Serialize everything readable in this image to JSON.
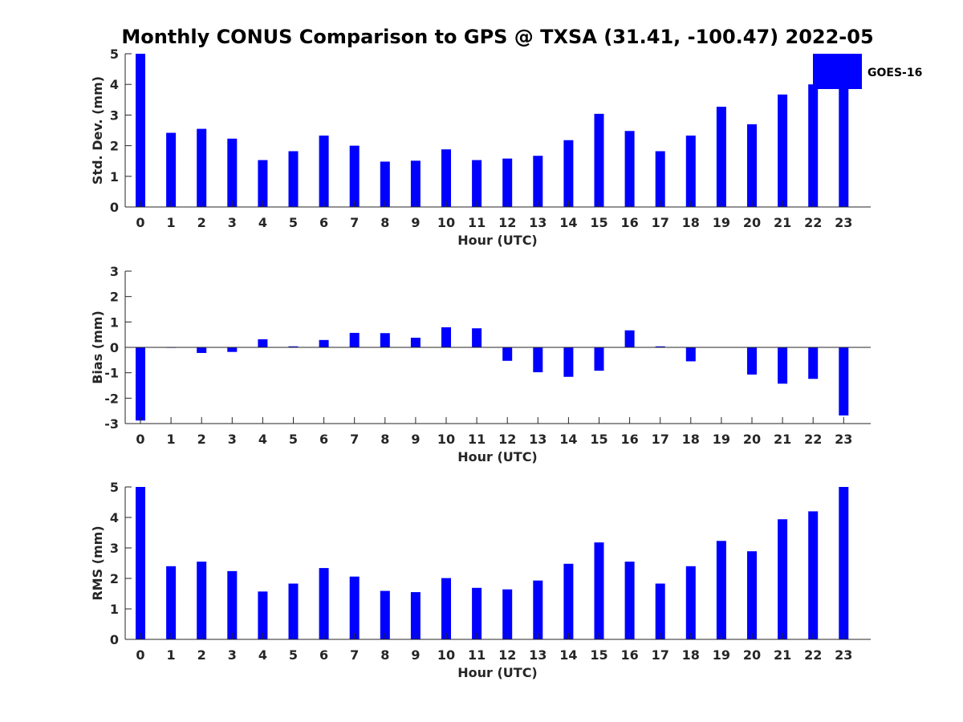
{
  "colors": {
    "bar": "#0000ff",
    "axis": "#262626",
    "background": "#ffffff"
  },
  "chart_data": {
    "title": "Monthly CONUS Comparison to GPS @ TXSA (31.41, -100.47) 2022-05",
    "legend": {
      "label": "GOES-16",
      "placement": "top-right"
    },
    "panels": [
      {
        "type": "bar",
        "ylabel": "Std. Dev. (mm)",
        "xlabel": "Hour (UTC)",
        "ylim": [
          0,
          5
        ],
        "yticks": [
          0,
          1,
          2,
          3,
          4,
          5
        ],
        "categories": [
          "0",
          "1",
          "2",
          "3",
          "4",
          "5",
          "6",
          "7",
          "8",
          "9",
          "10",
          "11",
          "12",
          "13",
          "14",
          "15",
          "16",
          "17",
          "18",
          "19",
          "20",
          "21",
          "22",
          "23"
        ],
        "series": [
          {
            "name": "GOES-16",
            "values": [
              5.0,
              2.42,
              2.55,
              2.23,
              1.53,
              1.82,
              2.33,
              2.0,
              1.48,
              1.51,
              1.88,
              1.53,
              1.58,
              1.67,
              2.18,
              3.04,
              2.48,
              1.82,
              2.33,
              3.27,
              2.7,
              3.67,
              4.0,
              4.0
            ]
          }
        ]
      },
      {
        "type": "bar",
        "ylabel": "Bias (mm)",
        "xlabel": "Hour (UTC)",
        "ylim": [
          -3,
          3
        ],
        "yticks": [
          -3,
          -2,
          -1,
          0,
          1,
          2,
          3
        ],
        "categories": [
          "0",
          "1",
          "2",
          "3",
          "4",
          "5",
          "6",
          "7",
          "8",
          "9",
          "10",
          "11",
          "12",
          "13",
          "14",
          "15",
          "16",
          "17",
          "18",
          "19",
          "20",
          "21",
          "22",
          "23"
        ],
        "series": [
          {
            "name": "GOES-16",
            "values": [
              -2.88,
              -0.02,
              -0.22,
              -0.18,
              0.32,
              0.04,
              0.29,
              0.57,
              0.56,
              0.38,
              0.79,
              0.75,
              -0.53,
              -0.98,
              -1.16,
              -0.92,
              0.67,
              0.04,
              -0.55,
              0.0,
              -1.07,
              -1.43,
              -1.24,
              -2.68
            ]
          }
        ]
      },
      {
        "type": "bar",
        "ylabel": "RMS (mm)",
        "xlabel": "Hour (UTC)",
        "ylim": [
          0,
          5
        ],
        "yticks": [
          0,
          1,
          2,
          3,
          4,
          5
        ],
        "categories": [
          "0",
          "1",
          "2",
          "3",
          "4",
          "5",
          "6",
          "7",
          "8",
          "9",
          "10",
          "11",
          "12",
          "13",
          "14",
          "15",
          "16",
          "17",
          "18",
          "19",
          "20",
          "21",
          "22",
          "23"
        ],
        "series": [
          {
            "name": "GOES-16",
            "values": [
              5.0,
              2.4,
              2.55,
              2.24,
              1.57,
              1.83,
              2.34,
              2.06,
              1.59,
              1.55,
              2.01,
              1.69,
              1.64,
              1.93,
              2.48,
              3.18,
              2.55,
              1.83,
              2.4,
              3.23,
              2.89,
              3.94,
              4.2,
              5.0
            ]
          }
        ]
      }
    ]
  }
}
